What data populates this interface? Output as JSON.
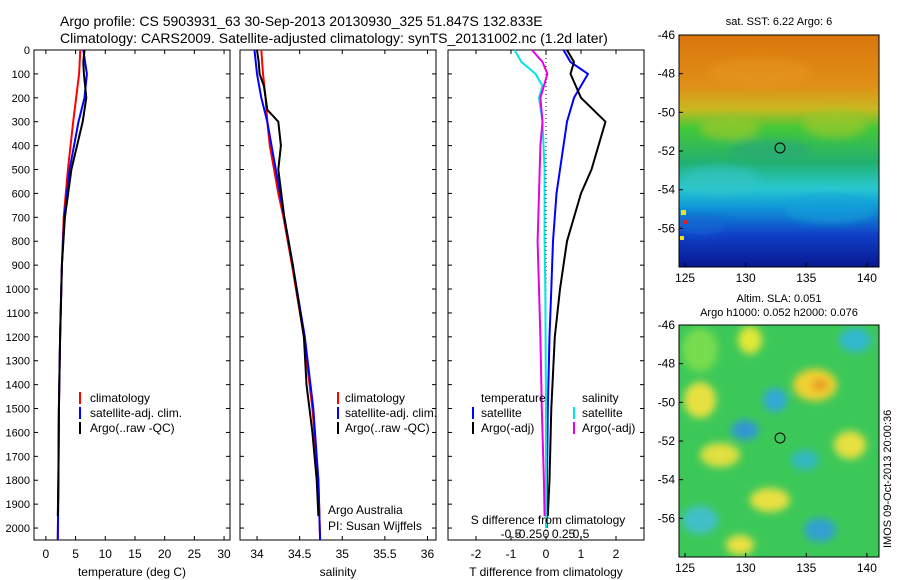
{
  "header": {
    "title_line1": "Argo profile: CS 5903931_63 30-Sep-2013 20130930_325 51.847S 132.833E",
    "title_line2": "Climatology: CARS2009. Satellite-adjusted climatology: synTS_20131002.nc (1.2d later)"
  },
  "colors": {
    "climatology": "#ff0000",
    "satellite": "#0000ff",
    "argo": "#000000",
    "sal_satellite": "#00e5e5",
    "sal_argo": "#e600e6"
  },
  "panels": {
    "temperature": {
      "xlabel": "temperature (deg C)",
      "xticks": [
        0,
        5,
        10,
        15,
        20,
        25,
        30
      ],
      "xlim": [
        -2,
        31
      ],
      "legend": [
        "climatology",
        "satellite-adj. clim.",
        "Argo(..raw -QC)"
      ]
    },
    "salinity": {
      "xlabel": "salinity",
      "xticks": [
        "34",
        "34.5",
        "35",
        "35.5",
        "36"
      ],
      "xlim": [
        33.8,
        36.1
      ],
      "legend": [
        "climatology",
        "satellite-adj. clim.",
        "Argo(..raw -QC)"
      ],
      "credit_line1": "Argo Australia",
      "credit_line2": "PI: Susan Wijffels"
    },
    "difference": {
      "xlabel": "T difference from climatology",
      "top_label": "S difference from climatology",
      "t_ticks": [
        "-2",
        "-1",
        "0",
        "1",
        "2"
      ],
      "s_ticks": [
        "-0.5",
        "-0.25",
        "0",
        "0.25",
        "0.5"
      ],
      "xlim": [
        -2.8,
        2.8
      ],
      "legend_temp_title": "temperature",
      "legend_sal_title": "salinity",
      "legend_temp": [
        "satellite",
        "Argo(-adj)"
      ],
      "legend_sal": [
        "satellite",
        "Argo(-adj)"
      ]
    }
  },
  "depth_axis": {
    "ylim": [
      0,
      2050
    ],
    "ticks": [
      0,
      100,
      200,
      300,
      400,
      500,
      600,
      700,
      800,
      900,
      1000,
      1100,
      1200,
      1300,
      1400,
      1500,
      1600,
      1700,
      1800,
      1900,
      2000
    ]
  },
  "maps": {
    "sst": {
      "title": "sat. SST: 6.22 Argo: 6",
      "xticks": [
        125,
        130,
        135,
        140
      ],
      "yticks": [
        -46,
        -48,
        -50,
        -52,
        -54,
        -56
      ],
      "xlim": [
        124.5,
        141
      ],
      "ylim": [
        -58,
        -46
      ],
      "float_lon": 132.833,
      "float_lat": -51.847
    },
    "sla": {
      "title_line1": "Altim. SLA: 0.051",
      "title_line2": "Argo h1000: 0.052 h2000: 0.076",
      "xticks": [
        125,
        130,
        135,
        140
      ],
      "yticks": [
        -46,
        -48,
        -50,
        -52,
        -54,
        -56
      ],
      "xlim": [
        124.5,
        141
      ],
      "ylim": [
        -58,
        -46
      ],
      "float_lon": 132.833,
      "float_lat": -51.847
    }
  },
  "footer_stamp": "IMOS 09-Oct-2013 20:00:36",
  "chart_data": [
    {
      "type": "line",
      "name": "temperature_profile",
      "series": [
        {
          "key": "climatology",
          "depth": [
            0,
            100,
            300,
            500,
            700,
            900,
            1200,
            1500,
            1800,
            2050
          ],
          "values": [
            5.8,
            5.6,
            4.6,
            3.7,
            3.0,
            2.7,
            2.4,
            2.2,
            2.1,
            2.0
          ]
        },
        {
          "key": "satellite",
          "depth": [
            0,
            50,
            100,
            200,
            300,
            500,
            700,
            900,
            1200,
            1500,
            1800,
            2050
          ],
          "values": [
            6.3,
            6.6,
            6.9,
            6.5,
            5.5,
            4.0,
            3.1,
            2.7,
            2.4,
            2.2,
            2.1,
            2.0
          ]
        },
        {
          "key": "argo",
          "depth": [
            0,
            50,
            100,
            200,
            300,
            500,
            700,
            900,
            1200,
            1500,
            1800,
            1950
          ],
          "values": [
            6.5,
            6.3,
            6.4,
            6.8,
            6.2,
            4.3,
            3.2,
            2.7,
            2.4,
            2.2,
            2.1,
            2.0
          ]
        }
      ]
    },
    {
      "type": "line",
      "name": "salinity_profile",
      "series": [
        {
          "key": "climatology",
          "depth": [
            0,
            100,
            200,
            300,
            400,
            500,
            600,
            700,
            900,
            1200,
            1500,
            1800,
            2050
          ],
          "values": [
            34.05,
            34.07,
            34.1,
            34.12,
            34.15,
            34.2,
            34.25,
            34.31,
            34.41,
            34.55,
            34.65,
            34.72,
            34.74
          ]
        },
        {
          "key": "satellite",
          "depth": [
            0,
            100,
            200,
            300,
            400,
            500,
            700,
            900,
            1200,
            1500,
            1800,
            2050
          ],
          "values": [
            33.97,
            34.0,
            34.05,
            34.12,
            34.17,
            34.22,
            34.32,
            34.42,
            34.56,
            34.66,
            34.72,
            34.74
          ]
        },
        {
          "key": "argo",
          "depth": [
            0,
            50,
            100,
            150,
            200,
            250,
            300,
            400,
            500,
            700,
            900,
            1200,
            1400,
            1600,
            1800,
            1950
          ],
          "values": [
            34.0,
            34.02,
            34.03,
            34.08,
            34.1,
            34.12,
            34.25,
            34.28,
            34.25,
            34.32,
            34.42,
            34.55,
            34.58,
            34.65,
            34.7,
            34.72
          ]
        }
      ]
    },
    {
      "type": "line",
      "name": "difference_profile",
      "series": [
        {
          "key": "t_satellite",
          "depth": [
            0,
            50,
            100,
            200,
            300,
            400,
            500,
            600,
            800,
            1000,
            1200,
            1500,
            1800,
            2000
          ],
          "values": [
            0.5,
            0.7,
            1.2,
            0.8,
            0.6,
            0.5,
            0.4,
            0.3,
            0.2,
            0.15,
            0.1,
            0.05,
            0.03,
            0.02
          ]
        },
        {
          "key": "t_argo",
          "depth": [
            0,
            50,
            100,
            200,
            300,
            400,
            500,
            600,
            800,
            1000,
            1200,
            1500,
            1800,
            1950
          ],
          "values": [
            0.6,
            0.8,
            0.7,
            1.0,
            1.7,
            1.5,
            1.3,
            1.0,
            0.6,
            0.4,
            0.25,
            0.15,
            0.1,
            0.05
          ]
        },
        {
          "key": "s_satellite",
          "depth": [
            0,
            50,
            100,
            150,
            200,
            300,
            500,
            800,
            1000,
            1500,
            2000
          ],
          "values": [
            -0.45,
            -0.35,
            -0.15,
            -0.05,
            -0.1,
            -0.05,
            -0.02,
            -0.02,
            -0.01,
            0,
            0
          ]
        },
        {
          "key": "s_argo",
          "depth": [
            0,
            50,
            100,
            200,
            300,
            400,
            600,
            800,
            1000,
            1200,
            1500,
            1800,
            1950
          ],
          "values": [
            -0.2,
            -0.05,
            0.02,
            -0.08,
            -0.05,
            -0.08,
            -0.1,
            -0.12,
            -0.1,
            -0.08,
            -0.06,
            -0.03,
            -0.02
          ]
        }
      ]
    }
  ]
}
